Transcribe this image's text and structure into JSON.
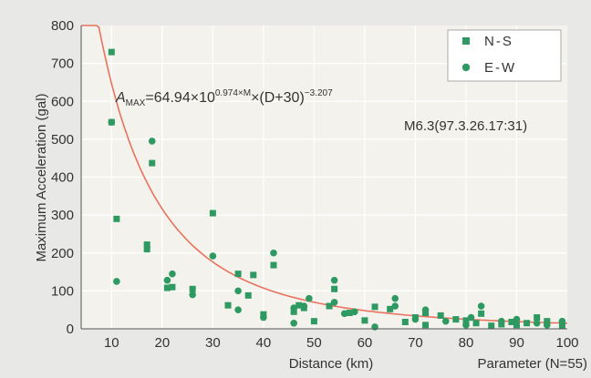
{
  "chart_data": {
    "type": "scatter",
    "title": "",
    "xlabel": "Distance (km)",
    "ylabel": "Maximum Acceleration (gal)",
    "xlim": [
      4,
      100
    ],
    "ylim": [
      0,
      800
    ],
    "x_ticks": [
      "10",
      "20",
      "30",
      "40",
      "50",
      "60",
      "70",
      "80",
      "90",
      "100"
    ],
    "y_ticks": [
      "0",
      "100",
      "200",
      "300",
      "400",
      "500",
      "600",
      "700",
      "800"
    ],
    "grid": true,
    "legend_position": "top-right",
    "colors": {
      "marker": "#2e9a62",
      "curve": "#e8725e",
      "grid": "#ffffff",
      "plot_bg": "#f4f2ec",
      "page_bg": "#e8e8e6"
    },
    "annotations": {
      "formula_prefix": "A",
      "formula_sub": "MAX",
      "formula_main": "=64.94×10",
      "formula_exp1": "0.974×M",
      "formula_mid": "×(D+30)",
      "formula_exp2": "−3.207",
      "event": "M6.3(97.3.26.17:31)",
      "parameter": "Parameter (N=55)"
    },
    "fit_curve": {
      "a": 64.94,
      "b": 0.974,
      "M": 6.3,
      "c": 30,
      "p": -3.207
    },
    "series": [
      {
        "name": "N-S",
        "marker": "square",
        "points": [
          [
            10,
            730
          ],
          [
            10,
            545
          ],
          [
            11,
            290
          ],
          [
            17,
            222
          ],
          [
            17,
            210
          ],
          [
            18,
            437
          ],
          [
            21,
            108
          ],
          [
            22,
            110
          ],
          [
            26,
            105
          ],
          [
            30,
            305
          ],
          [
            33,
            62
          ],
          [
            35,
            145
          ],
          [
            37,
            88
          ],
          [
            38,
            142
          ],
          [
            40,
            38
          ],
          [
            42,
            168
          ],
          [
            46,
            45
          ],
          [
            47,
            62
          ],
          [
            48,
            55
          ],
          [
            50,
            20
          ],
          [
            53,
            60
          ],
          [
            54,
            105
          ],
          [
            57,
            42
          ],
          [
            60,
            22
          ],
          [
            62,
            58
          ],
          [
            65,
            52
          ],
          [
            68,
            18
          ],
          [
            70,
            30
          ],
          [
            72,
            42
          ],
          [
            72,
            10
          ],
          [
            75,
            35
          ],
          [
            78,
            25
          ],
          [
            80,
            22
          ],
          [
            82,
            15
          ],
          [
            83,
            40
          ],
          [
            85,
            8
          ],
          [
            87,
            12
          ],
          [
            89,
            18
          ],
          [
            90,
            10
          ],
          [
            92,
            15
          ],
          [
            94,
            30
          ],
          [
            96,
            20
          ],
          [
            99,
            8
          ]
        ]
      },
      {
        "name": "E-W",
        "marker": "circle",
        "points": [
          [
            10,
            545
          ],
          [
            11,
            125
          ],
          [
            18,
            495
          ],
          [
            21,
            128
          ],
          [
            22,
            145
          ],
          [
            26,
            90
          ],
          [
            30,
            192
          ],
          [
            35,
            100
          ],
          [
            35,
            50
          ],
          [
            40,
            30
          ],
          [
            42,
            200
          ],
          [
            46,
            15
          ],
          [
            46,
            55
          ],
          [
            48,
            60
          ],
          [
            49,
            80
          ],
          [
            54,
            70
          ],
          [
            54,
            128
          ],
          [
            56,
            40
          ],
          [
            58,
            45
          ],
          [
            62,
            5
          ],
          [
            66,
            80
          ],
          [
            66,
            60
          ],
          [
            70,
            25
          ],
          [
            72,
            50
          ],
          [
            76,
            20
          ],
          [
            80,
            10
          ],
          [
            81,
            30
          ],
          [
            83,
            60
          ],
          [
            87,
            20
          ],
          [
            90,
            25
          ],
          [
            94,
            15
          ],
          [
            96,
            10
          ],
          [
            99,
            20
          ]
        ]
      }
    ]
  }
}
